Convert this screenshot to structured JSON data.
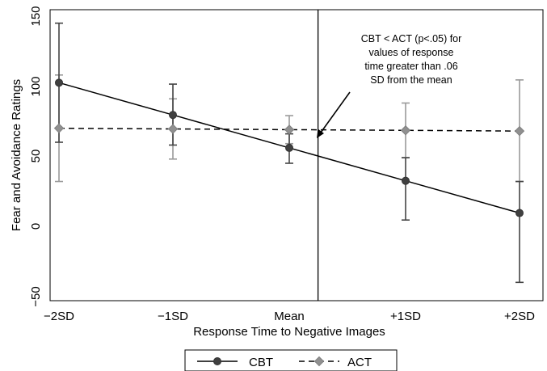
{
  "chart_data": {
    "type": "line",
    "title": "",
    "xlabel": "Response Time to Negative Images",
    "ylabel": "Fear and Avoidance Ratings",
    "categories": [
      "−2SD",
      "−1SD",
      "Mean",
      "+1SD",
      "+2SD"
    ],
    "x_values": [
      -2,
      -1,
      0,
      1,
      2
    ],
    "xlim": [
      -2,
      2
    ],
    "ylim": [
      -60,
      155
    ],
    "yticks": [
      -50,
      0,
      50,
      100,
      150
    ],
    "yticks_labels": [
      "−50",
      "0",
      "50",
      "100",
      "150"
    ],
    "grid": false,
    "legend_position": "bottom",
    "series": [
      {
        "name": "CBT",
        "line_style": "solid",
        "marker": "circle",
        "color": "#404040",
        "values": [
          102.5,
          79.5,
          56,
          32.5,
          9.5
        ],
        "ci_low": [
          60,
          58,
          45,
          4.5,
          -40
        ],
        "ci_high": [
          145,
          101.5,
          66,
          49,
          32
        ]
      },
      {
        "name": "ACT",
        "line_style": "dashed",
        "marker": "diamond",
        "color": "#909090",
        "values": [
          70,
          69.5,
          69,
          68.5,
          68
        ],
        "ci_low": [
          32,
          48,
          59,
          49,
          32
        ],
        "ci_high": [
          108,
          91,
          79,
          88,
          104.5
        ]
      }
    ],
    "reference_line": {
      "x": 0.25
    },
    "annotation": {
      "lines": [
        "CBT < ACT (p<.05) for",
        "values of response",
        "time greater than .06",
        "SD from the mean"
      ]
    }
  }
}
